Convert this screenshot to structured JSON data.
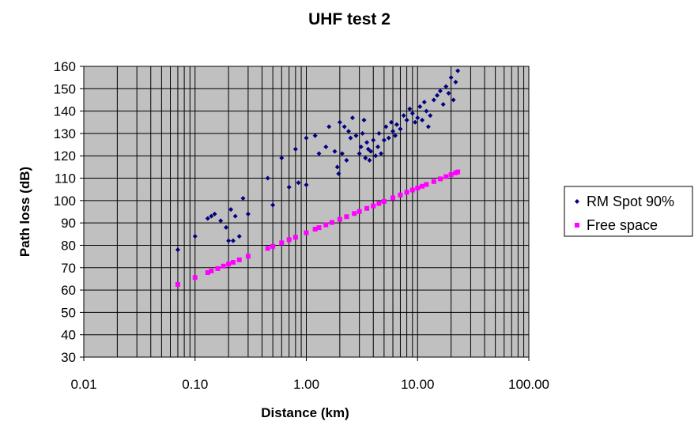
{
  "chart_data": {
    "type": "scatter",
    "title": "UHF test 2",
    "xlabel": "Distance (km)",
    "ylabel": "Path loss (dB)",
    "x_scale": "log",
    "xlim": [
      0.01,
      100
    ],
    "ylim": [
      30,
      160
    ],
    "x_ticks": [
      "0.01",
      "0.10",
      "1.00",
      "10.00",
      "100.00"
    ],
    "y_ticks": [
      "30",
      "40",
      "50",
      "60",
      "70",
      "80",
      "90",
      "100",
      "110",
      "120",
      "130",
      "140",
      "150",
      "160"
    ],
    "grid": true,
    "legend_position": "right",
    "colors": {
      "plot_background": "#c0c0c0",
      "grid": "#000000"
    },
    "series": [
      {
        "name": "RM Spot 90%",
        "marker": "diamond",
        "color": "#000080",
        "points": [
          [
            0.07,
            78
          ],
          [
            0.1,
            84
          ],
          [
            0.13,
            92
          ],
          [
            0.14,
            93
          ],
          [
            0.15,
            94
          ],
          [
            0.17,
            91
          ],
          [
            0.19,
            88
          ],
          [
            0.2,
            82
          ],
          [
            0.21,
            96
          ],
          [
            0.22,
            82
          ],
          [
            0.23,
            93
          ],
          [
            0.25,
            84
          ],
          [
            0.27,
            101
          ],
          [
            0.3,
            94
          ],
          [
            0.45,
            110
          ],
          [
            0.5,
            98
          ],
          [
            0.6,
            119
          ],
          [
            0.7,
            106
          ],
          [
            0.8,
            123
          ],
          [
            0.85,
            108
          ],
          [
            1.0,
            107
          ],
          [
            1.0,
            128
          ],
          [
            1.2,
            129
          ],
          [
            1.3,
            121
          ],
          [
            1.5,
            124
          ],
          [
            1.6,
            133
          ],
          [
            1.8,
            122
          ],
          [
            1.9,
            115
          ],
          [
            1.95,
            112
          ],
          [
            2.0,
            135
          ],
          [
            2.1,
            121
          ],
          [
            2.2,
            133
          ],
          [
            2.3,
            118
          ],
          [
            2.4,
            131
          ],
          [
            2.5,
            128
          ],
          [
            2.6,
            137
          ],
          [
            2.8,
            129
          ],
          [
            3.0,
            121
          ],
          [
            3.1,
            124
          ],
          [
            3.2,
            130
          ],
          [
            3.3,
            136
          ],
          [
            3.4,
            119
          ],
          [
            3.5,
            126
          ],
          [
            3.6,
            123
          ],
          [
            3.7,
            118
          ],
          [
            3.8,
            122
          ],
          [
            4.0,
            127
          ],
          [
            4.2,
            120
          ],
          [
            4.4,
            124
          ],
          [
            4.5,
            130
          ],
          [
            4.7,
            121
          ],
          [
            5.0,
            127
          ],
          [
            5.2,
            133
          ],
          [
            5.5,
            128
          ],
          [
            5.8,
            135
          ],
          [
            6.0,
            131
          ],
          [
            6.3,
            129
          ],
          [
            6.5,
            134
          ],
          [
            7.0,
            132
          ],
          [
            7.5,
            138
          ],
          [
            8.0,
            136
          ],
          [
            8.5,
            141
          ],
          [
            9.0,
            139
          ],
          [
            9.5,
            135
          ],
          [
            10.0,
            137
          ],
          [
            10.5,
            142
          ],
          [
            11.0,
            136
          ],
          [
            11.5,
            144
          ],
          [
            12.0,
            140
          ],
          [
            12.5,
            133
          ],
          [
            13.0,
            138
          ],
          [
            14.0,
            145
          ],
          [
            15.0,
            147
          ],
          [
            16.0,
            149
          ],
          [
            17.0,
            143
          ],
          [
            18.0,
            151
          ],
          [
            19.0,
            148
          ],
          [
            20.0,
            155
          ],
          [
            21.0,
            145
          ],
          [
            22.0,
            153
          ],
          [
            23.0,
            158
          ]
        ]
      },
      {
        "name": "Free space",
        "marker": "square",
        "color": "#ff00ff",
        "points": [
          [
            0.07,
            62.5
          ],
          [
            0.1,
            65.6
          ],
          [
            0.13,
            67.8
          ],
          [
            0.14,
            68.5
          ],
          [
            0.16,
            69.6
          ],
          [
            0.18,
            70.7
          ],
          [
            0.2,
            71.6
          ],
          [
            0.22,
            72.4
          ],
          [
            0.25,
            73.5
          ],
          [
            0.3,
            75.1
          ],
          [
            0.45,
            78.6
          ],
          [
            0.5,
            79.5
          ],
          [
            0.6,
            81.1
          ],
          [
            0.7,
            82.5
          ],
          [
            0.8,
            83.6
          ],
          [
            1.0,
            85.6
          ],
          [
            1.2,
            87.2
          ],
          [
            1.3,
            87.9
          ],
          [
            1.5,
            89.1
          ],
          [
            1.7,
            90.2
          ],
          [
            2.0,
            91.6
          ],
          [
            2.3,
            92.8
          ],
          [
            2.7,
            94.2
          ],
          [
            3.0,
            95.1
          ],
          [
            3.5,
            96.5
          ],
          [
            4.0,
            97.6
          ],
          [
            4.5,
            98.7
          ],
          [
            5.0,
            99.6
          ],
          [
            6.0,
            101.2
          ],
          [
            7.0,
            102.5
          ],
          [
            8.0,
            103.7
          ],
          [
            9.0,
            104.7
          ],
          [
            10.0,
            105.6
          ],
          [
            11.0,
            106.4
          ],
          [
            12.0,
            107.2
          ],
          [
            14.0,
            108.5
          ],
          [
            16.0,
            109.7
          ],
          [
            18.0,
            110.7
          ],
          [
            20.0,
            111.6
          ],
          [
            22.0,
            112.4
          ],
          [
            23.0,
            112.8
          ]
        ]
      }
    ]
  }
}
